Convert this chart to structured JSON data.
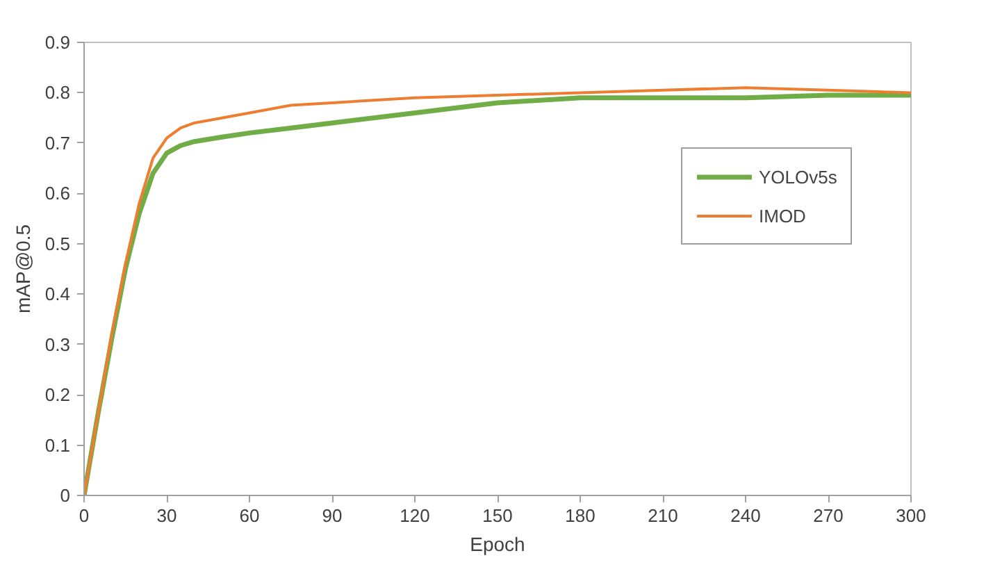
{
  "chart_data": {
    "type": "line",
    "xlabel": "Epoch",
    "ylabel": "mAP@0.5",
    "xlim": [
      0,
      300
    ],
    "ylim": [
      0,
      0.9
    ],
    "xticks": [
      0,
      30,
      60,
      90,
      120,
      150,
      180,
      210,
      240,
      270,
      300
    ],
    "yticks": [
      0,
      0.1,
      0.2,
      0.3,
      0.4,
      0.5,
      0.6,
      0.7,
      0.8,
      0.9
    ],
    "grid": false,
    "legend": "right",
    "marker": "none",
    "line_style": "solid",
    "series": [
      {
        "name": "YOLOv5s",
        "color": "#70ad47",
        "x": [
          0,
          5,
          10,
          15,
          20,
          25,
          30,
          35,
          40,
          50,
          60,
          75,
          90,
          120,
          150,
          180,
          210,
          240,
          270,
          300
        ],
        "values": [
          0,
          0.16,
          0.31,
          0.45,
          0.56,
          0.64,
          0.68,
          0.695,
          0.703,
          0.712,
          0.72,
          0.73,
          0.74,
          0.76,
          0.78,
          0.79,
          0.79,
          0.79,
          0.795,
          0.795
        ]
      },
      {
        "name": "IMOD",
        "color": "#ed7d31",
        "x": [
          0,
          5,
          10,
          15,
          20,
          25,
          30,
          35,
          40,
          50,
          60,
          75,
          90,
          120,
          150,
          180,
          210,
          240,
          270,
          300
        ],
        "values": [
          0,
          0.16,
          0.32,
          0.46,
          0.58,
          0.67,
          0.71,
          0.73,
          0.74,
          0.75,
          0.76,
          0.775,
          0.78,
          0.79,
          0.795,
          0.8,
          0.805,
          0.81,
          0.805,
          0.8
        ]
      }
    ]
  }
}
